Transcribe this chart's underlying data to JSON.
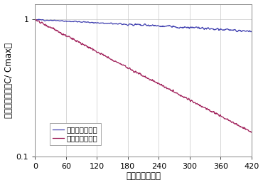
{
  "title": "",
  "xlabel": "経過時間（秒）",
  "ylabel": "基準化濃度（＝C/ Cmax）",
  "xmin": 0,
  "xmax": 420,
  "ymin": 0.1,
  "ymax": 1.3,
  "xticks": [
    0,
    60,
    120,
    180,
    240,
    300,
    360,
    420
  ],
  "legend1_label": "ミスト帯電なし",
  "legend2_label": "ミスト帯電あり",
  "line1_color": "#4040b0",
  "line2_color": "#a0205a",
  "background_color": "#ffffff",
  "grid_color": "#c8c8c8",
  "legend_fontsize": 7.5,
  "axis_fontsize": 8.5,
  "tick_fontsize": 8
}
